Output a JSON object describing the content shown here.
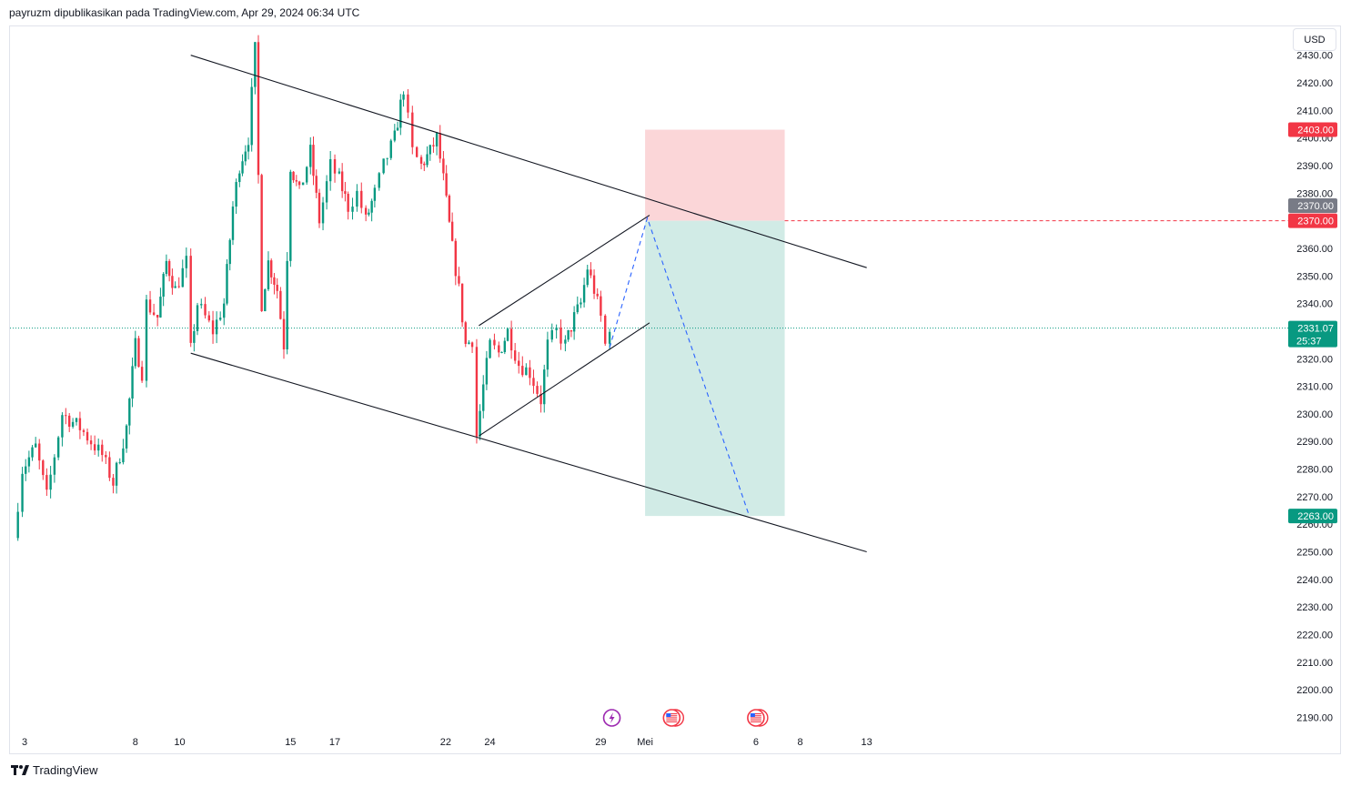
{
  "header": {
    "publisher": "payruzm dipublikasikan pada TradingView.com, Apr 29, 2024 06:34 UTC"
  },
  "currency": "USD",
  "footer": {
    "brand": "TradingView"
  },
  "chart_data": {
    "type": "candlestick",
    "symbol_currency": "USD",
    "y_axis": {
      "range": [
        2185,
        2433
      ],
      "ticks": [
        "2430.00",
        "2420.00",
        "2410.00",
        "2400.00",
        "2390.00",
        "2380.00",
        "2370.00",
        "2360.00",
        "2350.00",
        "2340.00",
        "2330.00",
        "2320.00",
        "2310.00",
        "2300.00",
        "2290.00",
        "2280.00",
        "2270.00",
        "2260.00",
        "2250.00",
        "2240.00",
        "2230.00",
        "2220.00",
        "2210.00",
        "2200.00",
        "2190.00"
      ]
    },
    "x_axis": {
      "ticks": [
        {
          "label": "3",
          "day": 3
        },
        {
          "label": "8",
          "day": 8
        },
        {
          "label": "10",
          "day": 10
        },
        {
          "label": "15",
          "day": 15
        },
        {
          "label": "17",
          "day": 17
        },
        {
          "label": "22",
          "day": 22
        },
        {
          "label": "24",
          "day": 24
        },
        {
          "label": "29",
          "day": 29
        },
        {
          "label": "Mei",
          "day": 31
        },
        {
          "label": "6",
          "day": 36
        },
        {
          "label": "8",
          "day": 38
        },
        {
          "label": "13",
          "day": 41
        }
      ]
    },
    "price_path": [
      [
        2.5,
        2255
      ],
      [
        2.9,
        2280
      ],
      [
        3.5,
        2288
      ],
      [
        4.0,
        2270
      ],
      [
        4.7,
        2300
      ],
      [
        5.5,
        2295
      ],
      [
        6.5,
        2285
      ],
      [
        7.0,
        2275
      ],
      [
        7.6,
        2295
      ],
      [
        8.0,
        2325
      ],
      [
        8.3,
        2315
      ],
      [
        8.5,
        2340
      ],
      [
        9.0,
        2335
      ],
      [
        9.4,
        2355
      ],
      [
        9.8,
        2345
      ],
      [
        10.3,
        2355
      ],
      [
        10.5,
        2323
      ],
      [
        10.8,
        2340
      ],
      [
        11.5,
        2330
      ],
      [
        12.0,
        2340
      ],
      [
        12.4,
        2375
      ],
      [
        12.7,
        2390
      ],
      [
        13.1,
        2400
      ],
      [
        13.4,
        2432
      ],
      [
        13.7,
        2340
      ],
      [
        14.0,
        2355
      ],
      [
        14.4,
        2345
      ],
      [
        14.7,
        2325
      ],
      [
        15.0,
        2390
      ],
      [
        15.4,
        2380
      ],
      [
        15.9,
        2395
      ],
      [
        16.3,
        2370
      ],
      [
        16.8,
        2390
      ],
      [
        17.2,
        2385
      ],
      [
        17.6,
        2375
      ],
      [
        18.0,
        2380
      ],
      [
        18.4,
        2370
      ],
      [
        18.8,
        2380
      ],
      [
        19.2,
        2390
      ],
      [
        19.7,
        2400
      ],
      [
        20.1,
        2418
      ],
      [
        20.5,
        2395
      ],
      [
        20.9,
        2390
      ],
      [
        21.3,
        2395
      ],
      [
        21.6,
        2400
      ],
      [
        21.9,
        2385
      ],
      [
        22.3,
        2360
      ],
      [
        22.6,
        2345
      ],
      [
        22.9,
        2325
      ],
      [
        23.2,
        2327
      ],
      [
        23.4,
        2292
      ],
      [
        23.7,
        2310
      ],
      [
        24.0,
        2325
      ],
      [
        24.4,
        2322
      ],
      [
        24.8,
        2330
      ],
      [
        25.3,
        2318
      ],
      [
        25.8,
        2315
      ],
      [
        26.3,
        2305
      ],
      [
        26.6,
        2325
      ],
      [
        27.0,
        2330
      ],
      [
        27.4,
        2325
      ],
      [
        27.8,
        2335
      ],
      [
        28.1,
        2340
      ],
      [
        28.4,
        2353
      ],
      [
        28.7,
        2345
      ],
      [
        29.0,
        2335
      ],
      [
        29.2,
        2325
      ],
      [
        29.4,
        2332
      ]
    ],
    "projection": [
      [
        29.4,
        2324
      ],
      [
        31.1,
        2371
      ],
      [
        35.7,
        2263
      ]
    ],
    "trendlines": [
      {
        "name": "descending-channel-upper",
        "from": [
          10.5,
          2430
        ],
        "to": [
          41.0,
          2353
        ]
      },
      {
        "name": "descending-channel-lower",
        "from": [
          10.5,
          2322
        ],
        "to": [
          41.0,
          2250
        ]
      },
      {
        "name": "wedge-upper",
        "from": [
          23.5,
          2332
        ],
        "to": [
          31.2,
          2372
        ]
      },
      {
        "name": "wedge-lower",
        "from": [
          23.5,
          2292
        ],
        "to": [
          31.2,
          2333
        ]
      }
    ],
    "position": {
      "side": "short",
      "entry": 2370.0,
      "stop": 2403.0,
      "target": 2263.0,
      "from_day": 31.0,
      "to_day": 37.3
    },
    "price_labels": [
      {
        "label": "2403.00",
        "value": 2403.0,
        "color": "#f23645"
      },
      {
        "label": "2370.00",
        "value": 2375.5,
        "color": "#787b86"
      },
      {
        "label": "2370.00",
        "value": 2370.0,
        "color": "#f23645"
      },
      {
        "label": "2263.00",
        "value": 2263.0,
        "color": "#089981"
      }
    ],
    "last_price": {
      "label": "2331.07",
      "value": 2331.07,
      "countdown": "25:37",
      "color": "#089981"
    },
    "event_icons": [
      {
        "name": "lightning-icon",
        "day": 29.5
      },
      {
        "name": "us-flag-icon",
        "day": 32.2
      },
      {
        "name": "us-flag-icon",
        "day": 36.0
      }
    ],
    "colors": {
      "up": "#089981",
      "down": "#f23645",
      "grid": "#f0f3fa",
      "stop_zone": "#fbd6d8",
      "target_zone": "#d1ebe6",
      "line": "#131722",
      "projection": "#2962ff"
    }
  }
}
